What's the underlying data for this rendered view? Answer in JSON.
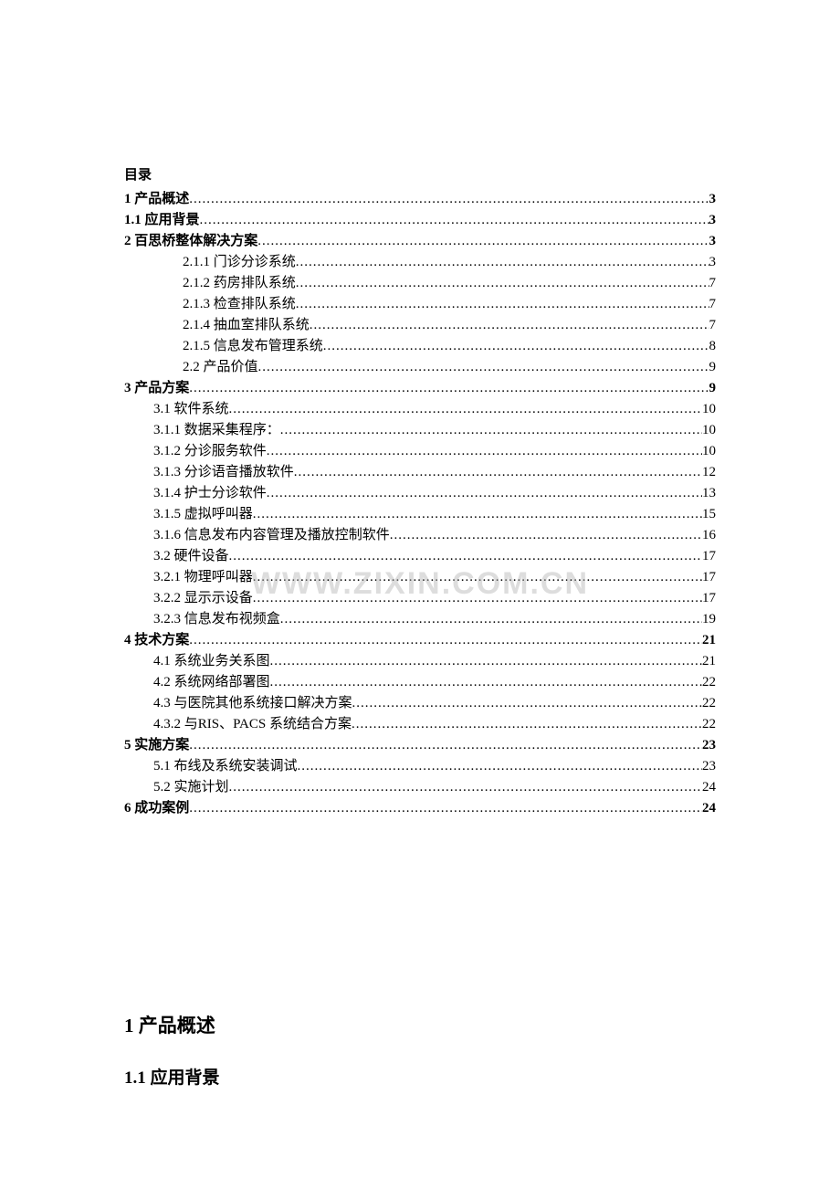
{
  "toc": {
    "title": "目录",
    "entries": [
      {
        "text": "1 产品概述",
        "page": "3",
        "indent": 0,
        "bold": true
      },
      {
        "text": "1.1 应用背景",
        "page": "3",
        "indent": 0,
        "bold": true
      },
      {
        "text": "2 百思桥整体解决方案",
        "page": "3",
        "indent": 0,
        "bold": true
      },
      {
        "text": "2.1.1 门诊分诊系统",
        "page": "3",
        "indent": 2,
        "bold": false
      },
      {
        "text": "2.1.2 药房排队系统",
        "page": "7",
        "indent": 2,
        "bold": false
      },
      {
        "text": "2.1.3 检查排队系统",
        "page": "7",
        "indent": 2,
        "bold": false
      },
      {
        "text": "2.1.4 抽血室排队系统",
        "page": "7",
        "indent": 2,
        "bold": false
      },
      {
        "text": "2.1.5 信息发布管理系统",
        "page": "8",
        "indent": 2,
        "bold": false
      },
      {
        "text": "2.2 产品价值",
        "page": "9",
        "indent": 2,
        "bold": false
      },
      {
        "text": "3 产品方案",
        "page": "9",
        "indent": 0,
        "bold": true
      },
      {
        "text": "3.1 软件系统",
        "page": "10",
        "indent": 1,
        "bold": false
      },
      {
        "text": "3.1.1 数据采集程序：",
        "page": "10",
        "indent": 1,
        "bold": false
      },
      {
        "text": "3.1.2 分诊服务软件",
        "page": "10",
        "indent": 1,
        "bold": false
      },
      {
        "text": "3.1.3 分诊语音播放软件",
        "page": "12",
        "indent": 1,
        "bold": false
      },
      {
        "text": "3.1.4 护士分诊软件",
        "page": "13",
        "indent": 1,
        "bold": false
      },
      {
        "text": "3.1.5 虚拟呼叫器",
        "page": "15",
        "indent": 1,
        "bold": false
      },
      {
        "text": "3.1.6 信息发布内容管理及播放控制软件",
        "page": "16",
        "indent": 1,
        "bold": false
      },
      {
        "text": "3.2 硬件设备",
        "page": "17",
        "indent": 1,
        "bold": false
      },
      {
        "text": "3.2.1 物理呼叫器",
        "page": "17",
        "indent": 1,
        "bold": false
      },
      {
        "text": "3.2.2 显示示设备",
        "page": "17",
        "indent": 1,
        "bold": false
      },
      {
        "text": "3.2.3 信息发布视频盒",
        "page": "19",
        "indent": 1,
        "bold": false
      },
      {
        "text": "4 技术方案",
        "page": "21",
        "indent": 0,
        "bold": true
      },
      {
        "text": "4.1 系统业务关系图",
        "page": "21",
        "indent": 1,
        "bold": false
      },
      {
        "text": "4.2 系统网络部署图",
        "page": "22",
        "indent": 1,
        "bold": false
      },
      {
        "text": "4.3 与医院其他系统接口解决方案",
        "page": "22",
        "indent": 1,
        "bold": false
      },
      {
        "text": "4.3.2 与RIS、PACS 系统结合方案",
        "page": "22",
        "indent": 1,
        "bold": false
      },
      {
        "text": "5 实施方案",
        "page": "23",
        "indent": 0,
        "bold": true
      },
      {
        "text": "5.1 布线及系统安装调试",
        "page": "23",
        "indent": 1,
        "bold": false
      },
      {
        "text": "5.2 实施计划",
        "page": "24",
        "indent": 1,
        "bold": false
      },
      {
        "text": "6 成功案例",
        "page": "24",
        "indent": 0,
        "bold": true
      }
    ]
  },
  "watermark": {
    "text": "WWW.ZIXIN.COM.CN"
  },
  "headings": {
    "h1": "1  产品概述",
    "h2": "1.1  应用背景"
  }
}
